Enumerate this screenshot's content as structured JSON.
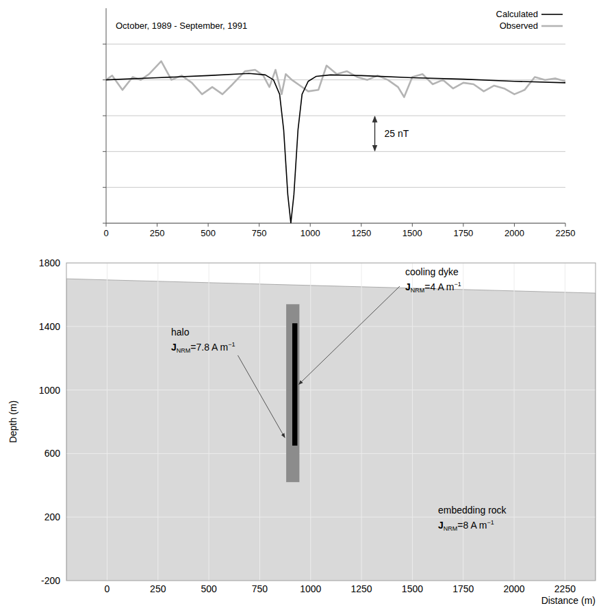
{
  "chart_data": [
    {
      "type": "line",
      "title": "October, 1989 - September, 1991",
      "xlim": [
        0,
        2250
      ],
      "xticks": [
        0,
        250,
        500,
        750,
        1000,
        1250,
        1500,
        1750,
        2000,
        2250
      ],
      "ylim": [
        -100,
        50
      ],
      "yticks": [
        -100,
        -75,
        -50,
        -25,
        0,
        25
      ],
      "tick_labels": "x",
      "grid": true,
      "legend": "top-right",
      "series": [
        {
          "name": "Calculated",
          "color": "#000000",
          "line_style": "solid",
          "x": [
            0,
            250,
            500,
            700,
            780,
            820,
            850,
            870,
            890,
            905,
            920,
            940,
            960,
            990,
            1030,
            1100,
            1250,
            1500,
            1750,
            2000,
            2250
          ],
          "values": [
            0,
            1.5,
            3,
            4.5,
            3.5,
            0,
            -10,
            -35,
            -80,
            -100,
            -80,
            -35,
            -10,
            -1,
            2.5,
            3.5,
            3,
            1.5,
            0.5,
            -1,
            -2
          ]
        },
        {
          "name": "Observed",
          "color": "#b4b4b4",
          "line_style": "solid",
          "x": [
            0,
            30,
            80,
            130,
            170,
            210,
            270,
            320,
            370,
            420,
            470,
            520,
            570,
            620,
            680,
            730,
            770,
            800,
            830,
            860,
            880,
            910,
            950,
            990,
            1040,
            1080,
            1130,
            1180,
            1230,
            1280,
            1330,
            1380,
            1430,
            1460,
            1500,
            1550,
            1600,
            1650,
            1700,
            1750,
            1800,
            1850,
            1900,
            1950,
            2000,
            2050,
            2100,
            2150,
            2200,
            2250
          ],
          "values": [
            0,
            3,
            -7,
            2,
            0,
            4,
            13,
            0,
            3,
            -2,
            -10,
            -5,
            -10,
            -3,
            6,
            7,
            3,
            -5,
            7,
            -10,
            4,
            0,
            -4,
            -8,
            -7,
            10,
            4,
            6,
            2,
            0,
            3,
            0,
            -5,
            -12,
            2,
            4,
            -3,
            0,
            -6,
            -2,
            -3,
            -8,
            -4,
            -6,
            -10,
            -7,
            2,
            0,
            1,
            -1
          ]
        }
      ],
      "scale_bar": {
        "label": "25 nT",
        "value": 25
      }
    },
    {
      "type": "section",
      "x_label": "Distance (m)",
      "y_label": "Depth (m)",
      "xlim": [
        -200,
        2400
      ],
      "xticks": [
        0,
        250,
        500,
        750,
        1000,
        1250,
        1500,
        1750,
        2000,
        2250
      ],
      "ylim": [
        -200,
        1800
      ],
      "yticks": [
        -200,
        200,
        600,
        1000,
        1400,
        1800
      ],
      "grid": true,
      "surface": {
        "x": [
          -200,
          2400
        ],
        "y": [
          1700,
          1610
        ]
      },
      "quantity": {
        "symbol": "J",
        "subscript": "NRM",
        "relation": "=",
        "unit": "A m",
        "exponent": "−1"
      },
      "bodies": [
        {
          "name": "embedding rock",
          "j_nrm": 8,
          "color": "#d9d9d9"
        },
        {
          "name": "halo",
          "j_nrm": 7.8,
          "color": "#8c8c8c",
          "x": [
            880,
            945
          ],
          "depth": [
            420,
            1540
          ]
        },
        {
          "name": "cooling dyke",
          "j_nrm": 4,
          "color": "#000000",
          "x": [
            910,
            935
          ],
          "depth": [
            650,
            1420
          ]
        }
      ]
    }
  ]
}
